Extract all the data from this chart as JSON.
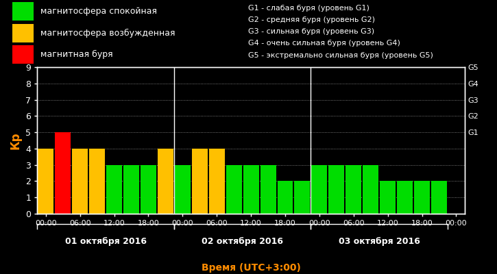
{
  "background_color": "#000000",
  "plot_bg_color": "#000000",
  "title_color": "#ff8c00",
  "axis_color": "#ffffff",
  "grid_color": "#ffffff",
  "ylabel": "Кр",
  "xlabel": "Время (UTC+3:00)",
  "ylim": [
    0,
    9
  ],
  "yticks": [
    0,
    1,
    2,
    3,
    4,
    5,
    6,
    7,
    8,
    9
  ],
  "days": [
    "01 октября 2016",
    "02 октября 2016",
    "03 октября 2016"
  ],
  "bars": [
    {
      "kp": 4,
      "color": "#ffc000"
    },
    {
      "kp": 5,
      "color": "#ff0000"
    },
    {
      "kp": 4,
      "color": "#ffc000"
    },
    {
      "kp": 4,
      "color": "#ffc000"
    },
    {
      "kp": 3,
      "color": "#00dd00"
    },
    {
      "kp": 3,
      "color": "#00dd00"
    },
    {
      "kp": 3,
      "color": "#00dd00"
    },
    {
      "kp": 4,
      "color": "#ffc000"
    },
    {
      "kp": 3,
      "color": "#00dd00"
    },
    {
      "kp": 4,
      "color": "#ffc000"
    },
    {
      "kp": 4,
      "color": "#ffc000"
    },
    {
      "kp": 3,
      "color": "#00dd00"
    },
    {
      "kp": 3,
      "color": "#00dd00"
    },
    {
      "kp": 3,
      "color": "#00dd00"
    },
    {
      "kp": 2,
      "color": "#00dd00"
    },
    {
      "kp": 2,
      "color": "#00dd00"
    },
    {
      "kp": 3,
      "color": "#00dd00"
    },
    {
      "kp": 3,
      "color": "#00dd00"
    },
    {
      "kp": 3,
      "color": "#00dd00"
    },
    {
      "kp": 3,
      "color": "#00dd00"
    },
    {
      "kp": 2,
      "color": "#00dd00"
    },
    {
      "kp": 2,
      "color": "#00dd00"
    },
    {
      "kp": 2,
      "color": "#00dd00"
    },
    {
      "kp": 2,
      "color": "#00dd00"
    }
  ],
  "legend_items": [
    {
      "label": "магнитосфера спокойная",
      "color": "#00dd00"
    },
    {
      "label": "магнитосфера возбужденная",
      "color": "#ffc000"
    },
    {
      "label": "магнитная буря",
      "color": "#ff0000"
    }
  ],
  "g_labels": [
    "G1 - слабая буря (уровень G1)",
    "G2 - средняя буря (уровень G2)",
    "G3 - сильная буря (уровень G3)",
    "G4 - очень сильная буря (уровень G4)",
    "G5 - экстремально сильная буря (уровень G5)"
  ],
  "right_axis_labels": [
    {
      "text": "G5",
      "kp": 9
    },
    {
      "text": "G4",
      "kp": 8
    },
    {
      "text": "G3",
      "kp": 7
    },
    {
      "text": "G2",
      "kp": 6
    },
    {
      "text": "G1",
      "kp": 5
    }
  ]
}
